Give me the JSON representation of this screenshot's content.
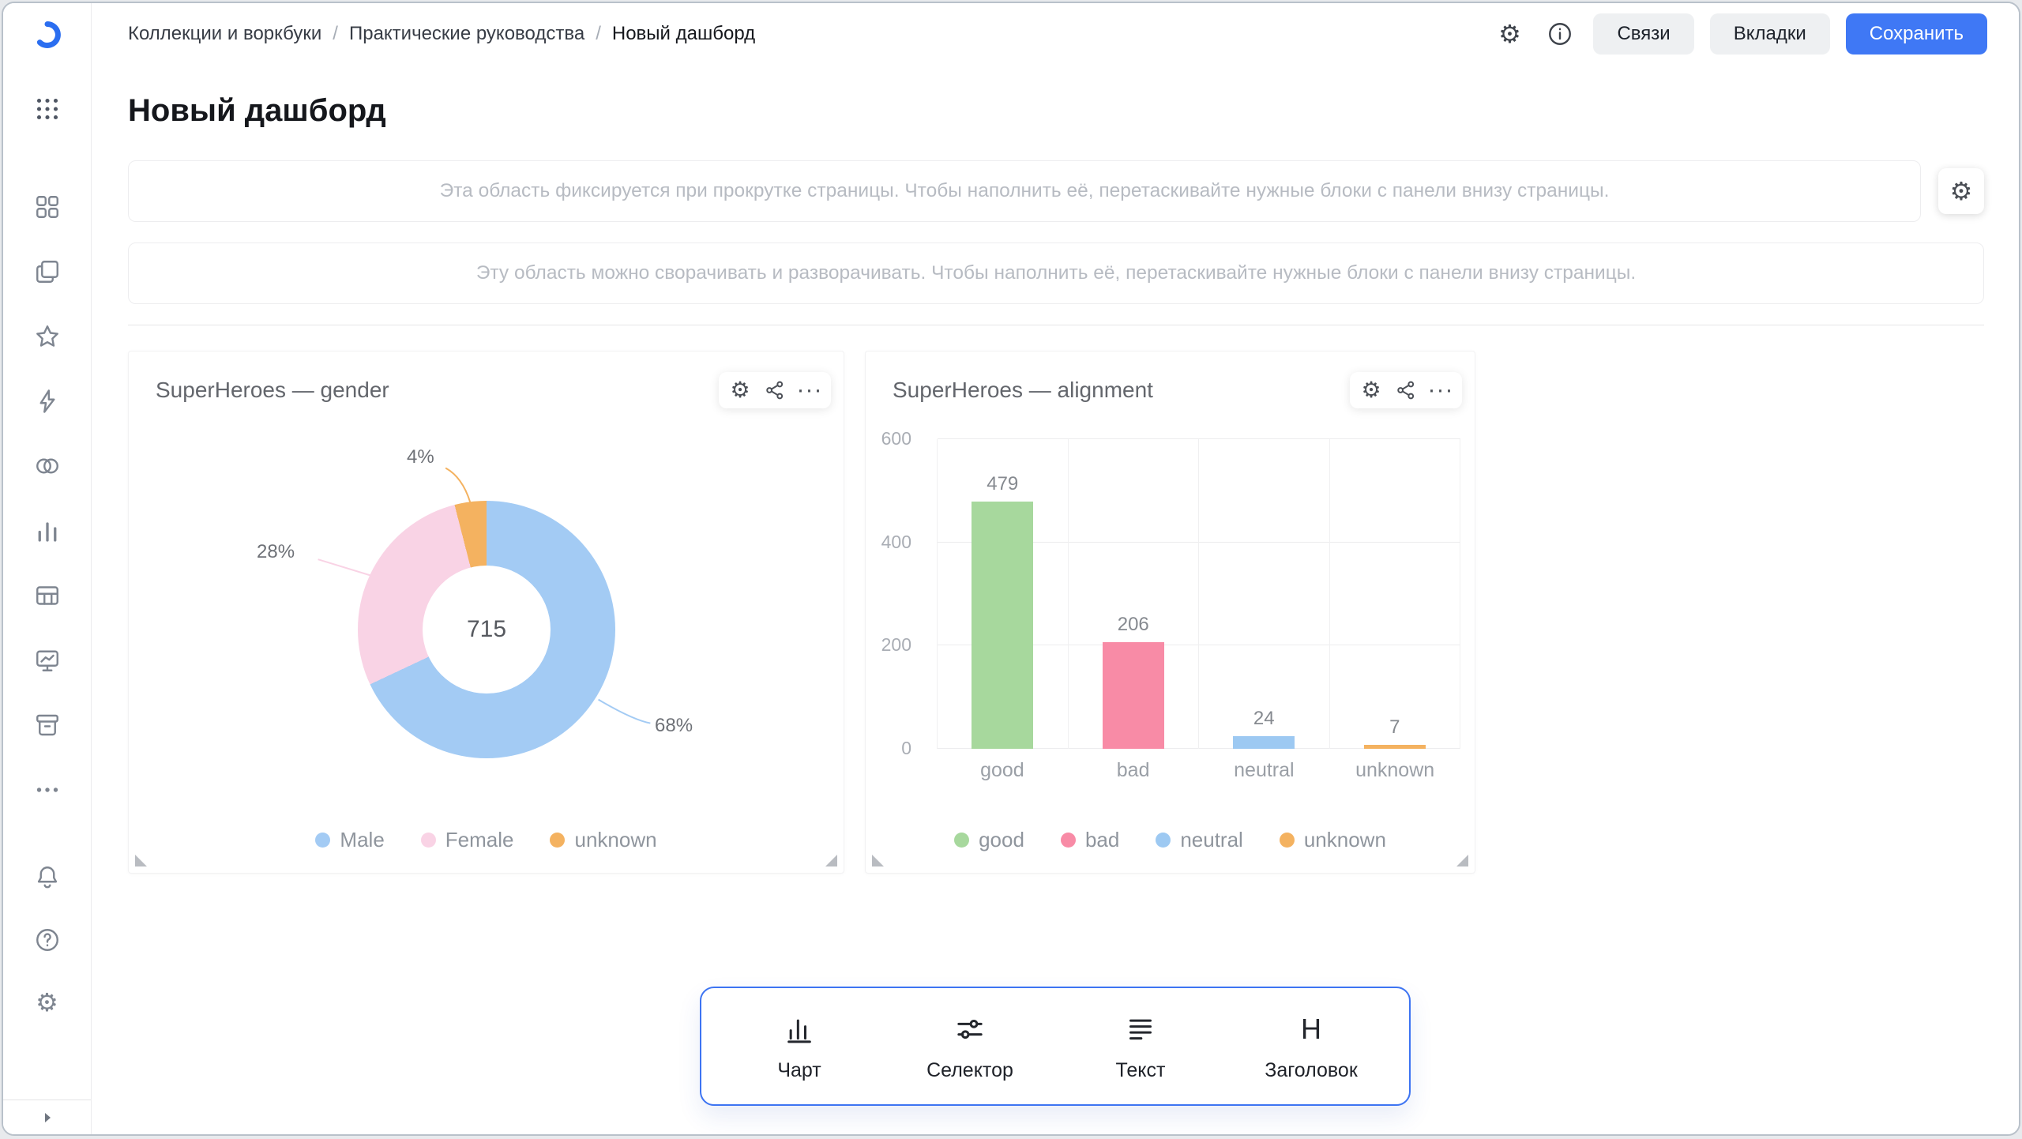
{
  "header": {
    "breadcrumbs": [
      "Коллекции и воркбуки",
      "Практические руководства",
      "Новый дашборд"
    ],
    "separator": "/",
    "relations_button": "Связи",
    "tabs_button": "Вкладки",
    "save_button": "Сохранить"
  },
  "page": {
    "title": "Новый дашборд"
  },
  "placeholders": {
    "fixed_area": "Эта область фиксируется при прокрутке страницы. Чтобы наполнить её, перетаскивайте нужные блоки с панели внизу страницы.",
    "collapsible_area": "Эту область можно сворачивать и разворачивать. Чтобы наполнить её, перетаскивайте нужные блоки с панели внизу страницы."
  },
  "chart_data": [
    {
      "type": "pie",
      "subtype": "donut",
      "title": "SuperHeroes — gender",
      "labels": [
        "Male",
        "Female",
        "unknown"
      ],
      "values": [
        68,
        28,
        4
      ],
      "value_unit": "%",
      "pct_labels": [
        "68%",
        "28%",
        "4%"
      ],
      "center_total": "715",
      "colors": [
        "#a3cbf4",
        "#f9d3e5",
        "#f4b260"
      ],
      "legend_position": "bottom"
    },
    {
      "type": "bar",
      "title": "SuperHeroes — alignment",
      "categories": [
        "good",
        "bad",
        "neutral",
        "unknown"
      ],
      "values": [
        479,
        206,
        24,
        7
      ],
      "colors": [
        "#a7d89d",
        "#f88ba6",
        "#9dc9f2",
        "#f4b260"
      ],
      "ylim": [
        0,
        600
      ],
      "yticks": [
        0,
        200,
        400,
        600
      ],
      "grid": true,
      "legend_position": "bottom"
    }
  ],
  "bottom_panel": {
    "items": [
      {
        "id": "chart",
        "label": "Чарт"
      },
      {
        "id": "selector",
        "label": "Селектор"
      },
      {
        "id": "text",
        "label": "Текст"
      },
      {
        "id": "title",
        "label": "Заголовок"
      }
    ]
  },
  "sidebar": {
    "icons": [
      "datalens-logo",
      "apps-grid",
      "collections",
      "workbooks",
      "favorites",
      "quick-actions",
      "datasets",
      "charts",
      "tables",
      "dashboards",
      "storage",
      "more",
      "notifications",
      "help",
      "settings",
      "collapse"
    ]
  },
  "colors": {
    "accent": "#3d74f2",
    "save_button": "#3f78f5"
  }
}
